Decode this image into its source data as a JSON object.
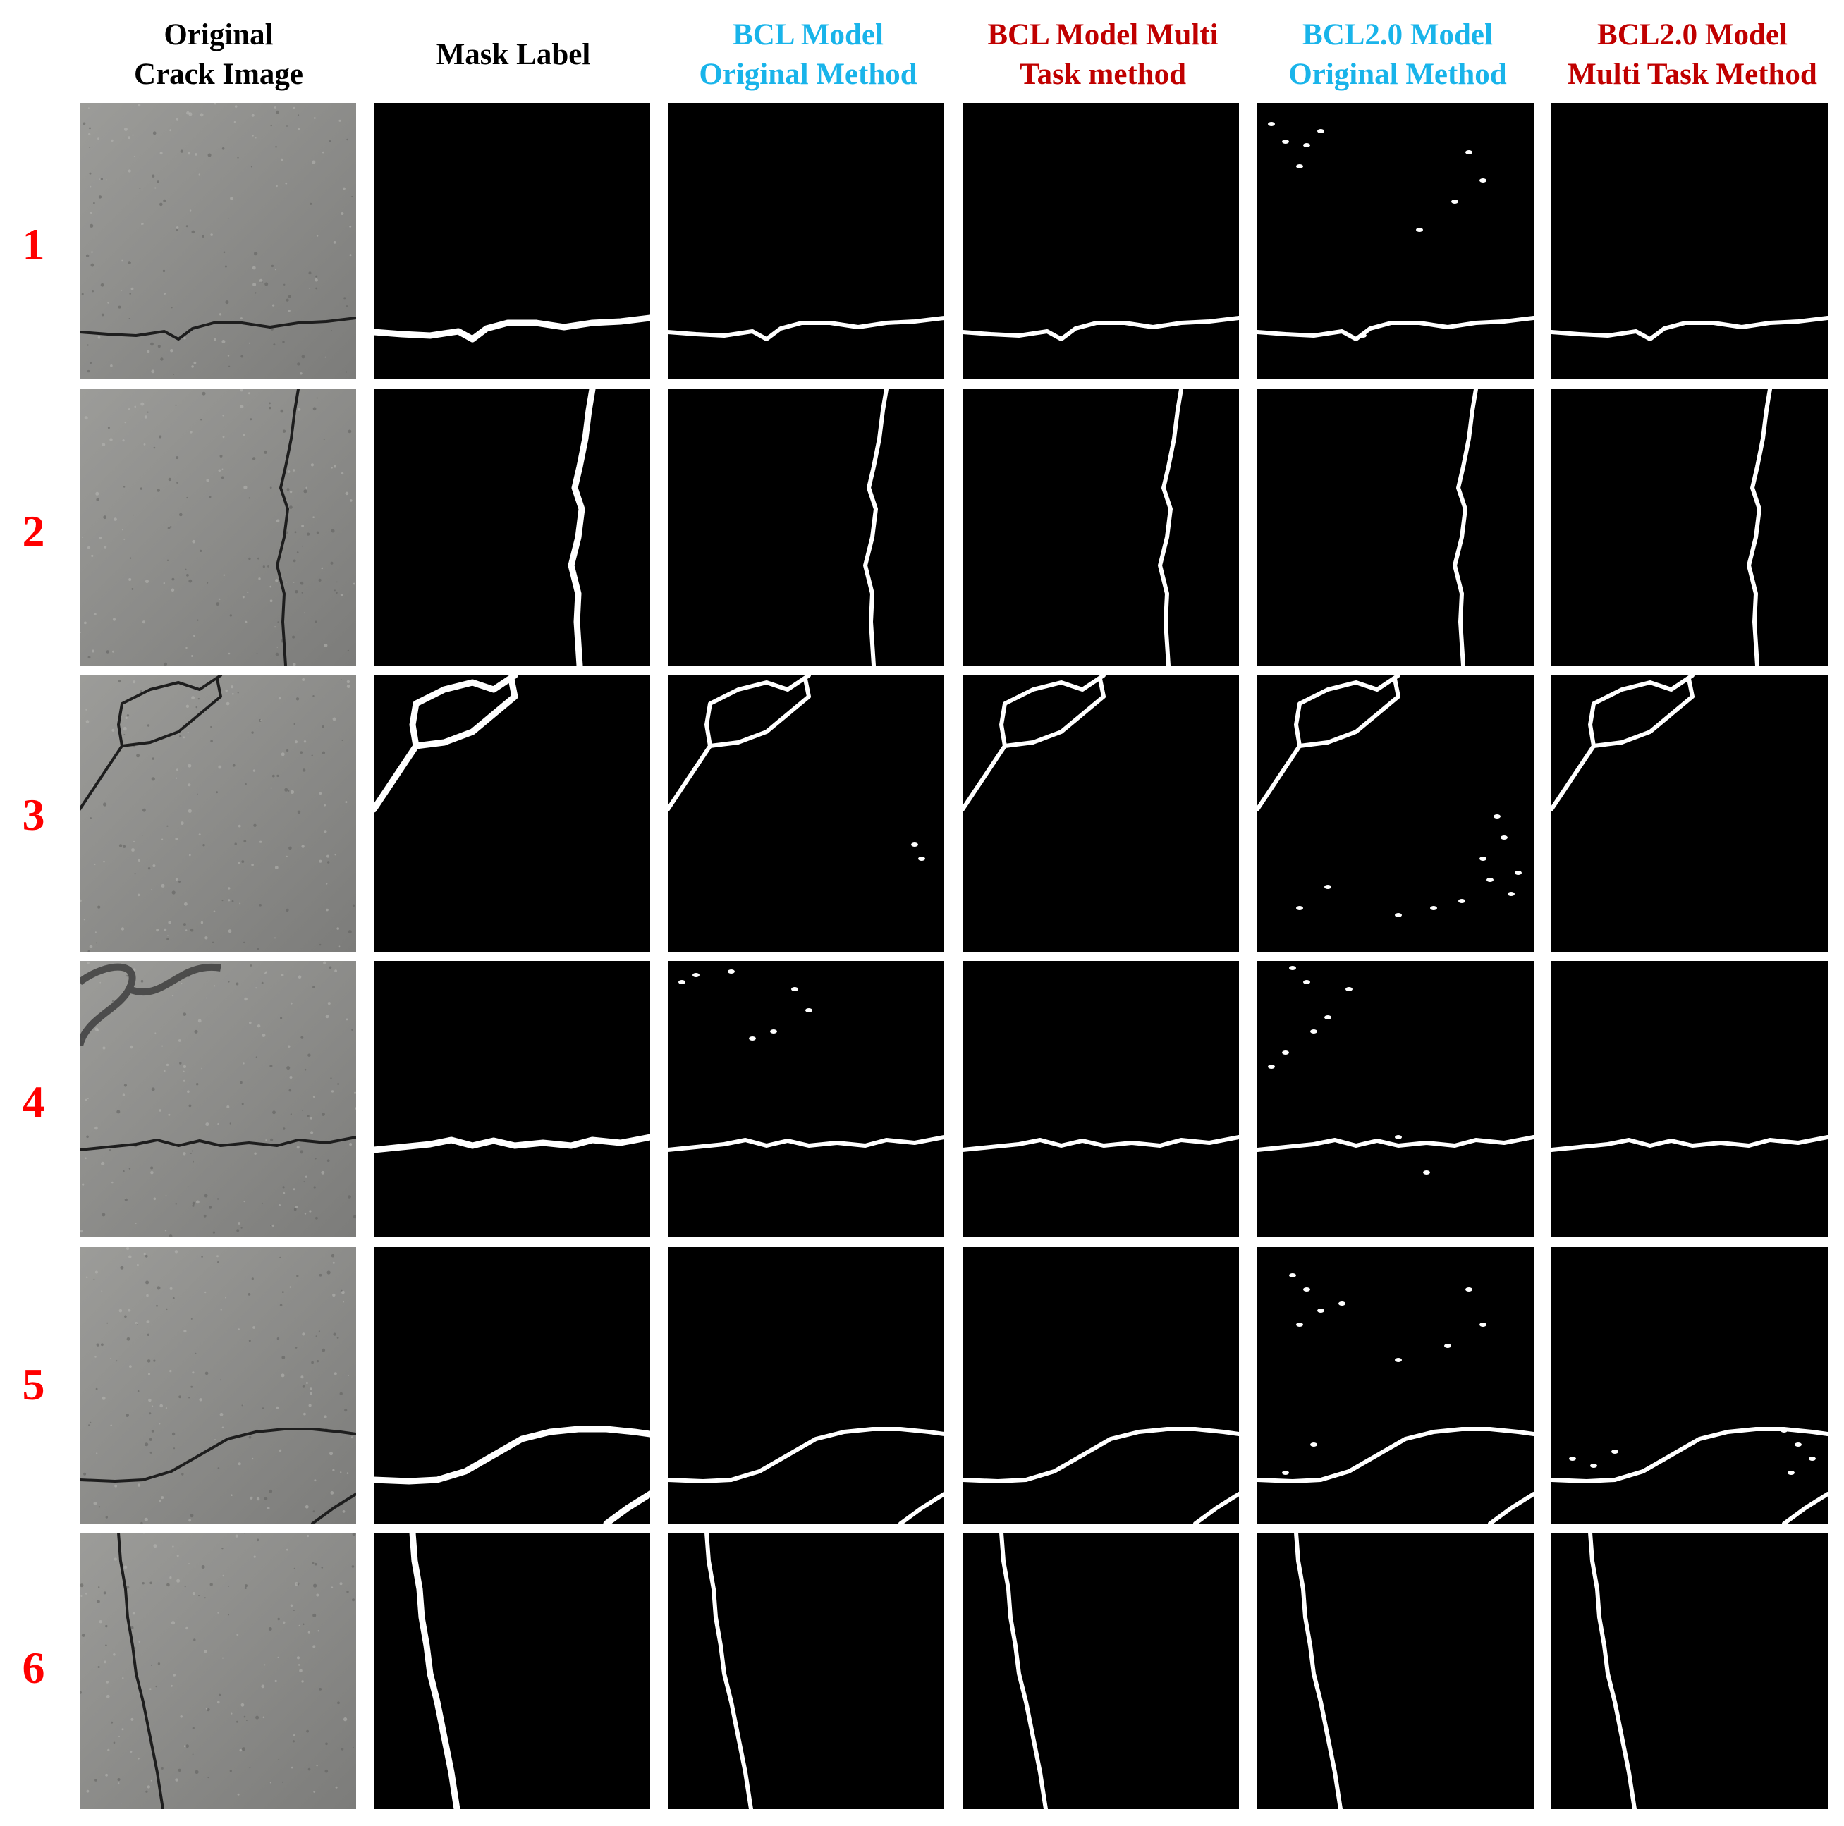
{
  "colors": {
    "header_black": "#000000",
    "header_blue": "#19b4ea",
    "header_red": "#c00000",
    "row_label_red": "#ff0000",
    "mask_background": "#000000",
    "mask_crack": "#ffffff",
    "photo_surface": "#8a8a88"
  },
  "columns": [
    {
      "label": "Original\nCrack Image",
      "color": "black",
      "kind": "photo"
    },
    {
      "label": "Mask Label",
      "color": "black",
      "kind": "mask"
    },
    {
      "label": "BCL Model\nOriginal Method",
      "color": "blue",
      "kind": "mask"
    },
    {
      "label": "BCL Model Multi\nTask method",
      "color": "red",
      "kind": "mask"
    },
    {
      "label": "BCL2.0 Model\nOriginal Method",
      "color": "blue",
      "kind": "mask"
    },
    {
      "label": "BCL2.0 Model\nMulti Task Method",
      "color": "red",
      "kind": "mask"
    }
  ],
  "rows": [
    {
      "label": "1"
    },
    {
      "label": "2"
    },
    {
      "label": "3"
    },
    {
      "label": "4"
    },
    {
      "label": "5"
    },
    {
      "label": "6"
    }
  ]
}
